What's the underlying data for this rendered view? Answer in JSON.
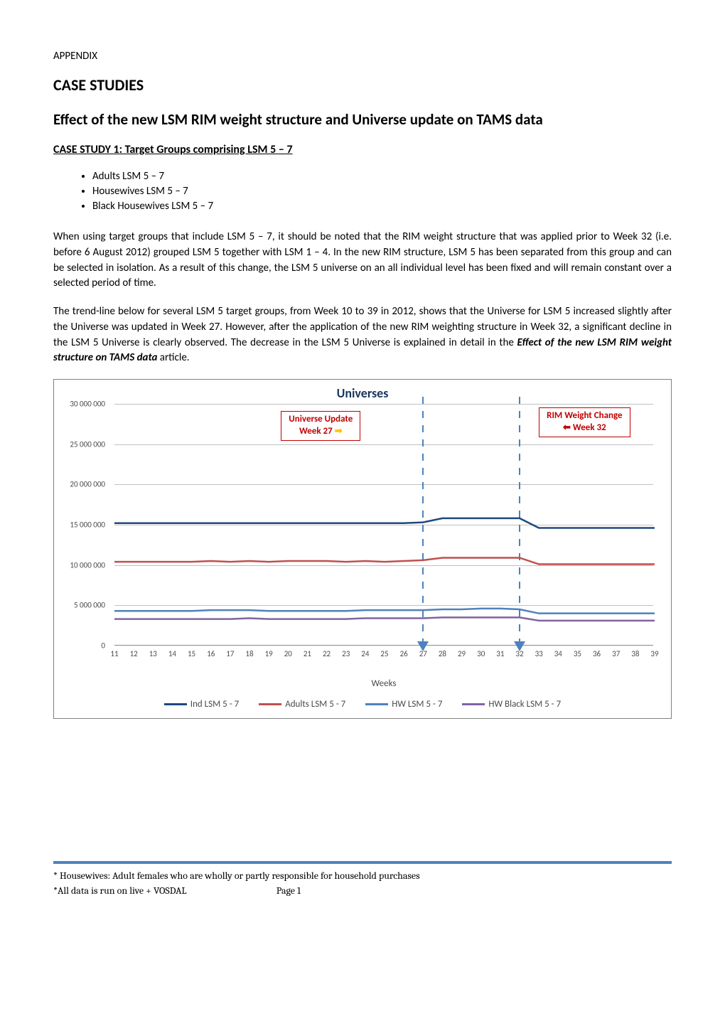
{
  "appendix_label": "APPENDIX",
  "main_heading": "CASE STUDIES",
  "sub_heading": "Effect of the new LSM RIM weight structure and Universe update on TAMS data",
  "case_study_title": "CASE STUDY 1:  Target Groups comprising LSM 5 – 7",
  "bullets": [
    "Adults LSM 5 – 7",
    "Housewives LSM 5 – 7",
    "Black Housewives LSM 5 – 7"
  ],
  "paragraph1": "When using target groups that include LSM 5 – 7, it should be noted that the RIM weight structure that was applied prior to Week 32 (i.e. before 6 August 2012) grouped LSM 5 together with LSM 1 – 4.   In the new RIM structure, LSM 5 has been separated from this group and can be selected in isolation.  As a result of this change, the LSM 5 universe on an all individual level has been fixed and will remain constant over a selected period of time.",
  "paragraph2_part1": "The trend-line below for several LSM 5 target groups, from Week 10 to 39 in 2012, shows that the Universe for LSM 5 increased slightly after the Universe was updated in Week 27.   However, after the application of the new RIM weighting structure in Week 32, a significant decline in the LSM 5 Universe is clearly observed.  The decrease in the LSM 5 Universe is explained in detail in the ",
  "paragraph2_emphasis": "Effect of the new LSM RIM weight structure on TAMS data",
  "paragraph2_part2": " article.",
  "chart": {
    "title": "Universes",
    "x_axis_title": "Weeks",
    "annotation_universe_line1": "Universe Update",
    "annotation_universe_line2": "Week 27",
    "annotation_rim_line1": "RIM Weight Change",
    "annotation_rim_line2": "Week 32",
    "y_min": 0,
    "y_max": 30000000,
    "y_step": 5000000,
    "y_labels": [
      "0",
      "5 000 000",
      "10 000 000",
      "15 000 000",
      "20 000 000",
      "25 000 000",
      "30 000 000"
    ],
    "x_values": [
      11,
      12,
      13,
      14,
      15,
      16,
      17,
      18,
      19,
      20,
      21,
      22,
      23,
      24,
      25,
      26,
      27,
      28,
      29,
      30,
      31,
      32,
      33,
      34,
      35,
      36,
      37,
      38,
      39
    ],
    "marker_week_27": 27,
    "marker_week_32": 32,
    "series": {
      "ind_lsm": {
        "label": "Ind LSM 5 - 7",
        "color": "#1f497d",
        "values": [
          15200000,
          15200000,
          15200000,
          15200000,
          15200000,
          15200000,
          15200000,
          15200000,
          15200000,
          15200000,
          15200000,
          15200000,
          15200000,
          15200000,
          15200000,
          15200000,
          15300000,
          15800000,
          15800000,
          15800000,
          15800000,
          15800000,
          14600000,
          14600000,
          14600000,
          14600000,
          14600000,
          14600000,
          14600000
        ]
      },
      "adults_lsm": {
        "label": "Adults LSM 5 - 7",
        "color": "#c0504d",
        "values": [
          10400000,
          10400000,
          10400000,
          10400000,
          10400000,
          10500000,
          10400000,
          10500000,
          10400000,
          10500000,
          10500000,
          10500000,
          10400000,
          10500000,
          10400000,
          10500000,
          10600000,
          10900000,
          10900000,
          10900000,
          10900000,
          10900000,
          10100000,
          10100000,
          10100000,
          10100000,
          10100000,
          10100000,
          10100000
        ]
      },
      "hw_lsm": {
        "label": "HW LSM 5 - 7",
        "color": "#4f81bd",
        "values": [
          4300000,
          4300000,
          4300000,
          4300000,
          4300000,
          4400000,
          4400000,
          4400000,
          4300000,
          4300000,
          4300000,
          4300000,
          4300000,
          4400000,
          4400000,
          4400000,
          4400000,
          4500000,
          4500000,
          4600000,
          4600000,
          4500000,
          4000000,
          4000000,
          4000000,
          4000000,
          4000000,
          4000000,
          4000000
        ]
      },
      "hw_black_lsm": {
        "label": "HW Black LSM 5 - 7",
        "color": "#8064a2",
        "values": [
          3300000,
          3300000,
          3300000,
          3300000,
          3300000,
          3300000,
          3300000,
          3400000,
          3300000,
          3300000,
          3300000,
          3300000,
          3300000,
          3400000,
          3400000,
          3400000,
          3400000,
          3500000,
          3500000,
          3500000,
          3500000,
          3500000,
          3100000,
          3100000,
          3100000,
          3100000,
          3100000,
          3100000,
          3100000
        ]
      }
    }
  },
  "footer_line1": "* Housewives:  Adult females who are wholly or partly responsible for household purchases",
  "footer_line2_part1": "*All data is run on live + VOSDAL",
  "footer_line2_part2": "Page 1"
}
